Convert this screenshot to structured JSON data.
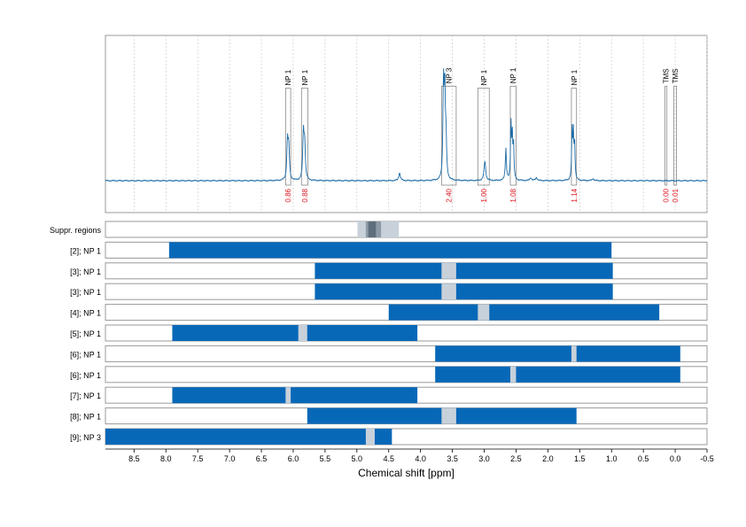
{
  "chart_data": {
    "type": "line",
    "title": "",
    "xlabel": "Chemical shift [ppm]",
    "xlim": [
      8.95,
      -0.5
    ],
    "x_reversed": true,
    "x_ticks": [
      "8.5",
      "8.0",
      "7.5",
      "7.0",
      "6.5",
      "6.0",
      "5.5",
      "5.0",
      "4.5",
      "4.0",
      "3.5",
      "3.0",
      "2.5",
      "2.0",
      "1.5",
      "1.0",
      "0.5",
      "0.0",
      "-0.5"
    ],
    "x_tick_values": [
      8.5,
      8.0,
      7.5,
      7.0,
      6.5,
      6.0,
      5.5,
      5.0,
      4.5,
      4.0,
      3.5,
      3.0,
      2.5,
      2.0,
      1.5,
      1.0,
      0.5,
      0.0,
      -0.5
    ],
    "grid": true,
    "colors": {
      "spectrum": "#1b6aa5",
      "bar": "#0868b8",
      "integral": "#e0141e",
      "region_box": "#888888",
      "suppression": "#c8d1da",
      "suppression_core": "#5f6e7c",
      "bar_gap": "#c8d1da"
    },
    "spectrum_peaks": [
      {
        "ppm": 6.09,
        "height": 0.4,
        "width": 0.012
      },
      {
        "ppm": 6.07,
        "height": 0.32,
        "width": 0.012
      },
      {
        "ppm": 5.84,
        "height": 0.48,
        "width": 0.012
      },
      {
        "ppm": 5.82,
        "height": 0.35,
        "width": 0.012
      },
      {
        "ppm": 4.33,
        "height": 0.08,
        "width": 0.015
      },
      {
        "ppm": 3.64,
        "height": 0.96,
        "width": 0.01
      },
      {
        "ppm": 3.62,
        "height": 0.9,
        "width": 0.01
      },
      {
        "ppm": 3.6,
        "height": 0.4,
        "width": 0.01
      },
      {
        "ppm": 2.99,
        "height": 0.2,
        "width": 0.015
      },
      {
        "ppm": 2.66,
        "height": 0.33,
        "width": 0.01
      },
      {
        "ppm": 2.58,
        "height": 0.58,
        "width": 0.008
      },
      {
        "ppm": 2.56,
        "height": 0.45,
        "width": 0.008
      },
      {
        "ppm": 2.54,
        "height": 0.38,
        "width": 0.008
      },
      {
        "ppm": 2.27,
        "height": 0.03,
        "width": 0.015
      },
      {
        "ppm": 2.18,
        "height": 0.03,
        "width": 0.015
      },
      {
        "ppm": 1.62,
        "height": 0.5,
        "width": 0.008
      },
      {
        "ppm": 1.6,
        "height": 0.47,
        "width": 0.008
      },
      {
        "ppm": 1.58,
        "height": 0.36,
        "width": 0.008
      },
      {
        "ppm": 1.29,
        "height": 0.02,
        "width": 0.015
      }
    ],
    "peak_regions": [
      {
        "label": "NP 1",
        "from": 6.12,
        "to": 6.04,
        "integral": "0.86",
        "box_height": 0.95
      },
      {
        "label": "NP 1",
        "from": 5.87,
        "to": 5.77,
        "integral": "0.88",
        "box_height": 0.95
      },
      {
        "label": "NP 3",
        "from": 3.67,
        "to": 3.44,
        "integral": "2.40",
        "box_height": 0.97
      },
      {
        "label": "NP 1",
        "from": 3.1,
        "to": 2.92,
        "integral": "1.00",
        "box_height": 0.95
      },
      {
        "label": "NP 1",
        "from": 2.59,
        "to": 2.5,
        "integral": "1.08",
        "box_height": 0.97
      },
      {
        "label": "NP 1",
        "from": 1.63,
        "to": 1.55,
        "integral": "1.14",
        "box_height": 0.95
      },
      {
        "label": "TMS",
        "from": 0.16,
        "to": 0.13,
        "integral": "0.00",
        "box_height": 0.97
      },
      {
        "label": "TMS",
        "from": 0.02,
        "to": -0.02,
        "integral": "0.01",
        "box_height": 0.97
      }
    ],
    "suppression_row": {
      "label": "Suppr. regions",
      "outer": [
        4.99,
        4.34
      ],
      "inner": [
        4.86,
        4.62
      ],
      "core": [
        4.82,
        4.7
      ]
    },
    "tracks": [
      {
        "label": "[2]; NP 1",
        "segments": [
          [
            7.95,
            1.0
          ]
        ],
        "gaps": []
      },
      {
        "label": "[3]; NP 1",
        "segments": [
          [
            5.66,
            0.98
          ]
        ],
        "gaps": [
          [
            3.67,
            3.44
          ]
        ]
      },
      {
        "label": "[3]; NP 1",
        "segments": [
          [
            5.66,
            0.98
          ]
        ],
        "gaps": [
          [
            3.67,
            3.44
          ]
        ]
      },
      {
        "label": "[4]; NP 1",
        "segments": [
          [
            4.5,
            0.25
          ]
        ],
        "gaps": [
          [
            3.1,
            2.92
          ]
        ]
      },
      {
        "label": "[5]; NP 1",
        "segments": [
          [
            7.9,
            4.05
          ]
        ],
        "gaps": [
          [
            5.92,
            5.78
          ]
        ]
      },
      {
        "label": "[6]; NP 1",
        "segments": [
          [
            3.77,
            -0.08
          ]
        ],
        "gaps": [
          [
            1.63,
            1.55
          ]
        ]
      },
      {
        "label": "[6]; NP 1",
        "segments": [
          [
            3.77,
            -0.08
          ]
        ],
        "gaps": [
          [
            2.59,
            2.5
          ]
        ]
      },
      {
        "label": "[7]; NP 1",
        "segments": [
          [
            7.9,
            4.05
          ]
        ],
        "gaps": [
          [
            6.12,
            6.04
          ]
        ]
      },
      {
        "label": "[8]; NP 1",
        "segments": [
          [
            5.78,
            1.55
          ]
        ],
        "gaps": [
          [
            3.67,
            3.44
          ]
        ]
      },
      {
        "label": "[9]; NP 3",
        "segments": [
          [
            8.95,
            4.45
          ]
        ],
        "gaps": [
          [
            4.86,
            4.72
          ]
        ]
      }
    ]
  }
}
